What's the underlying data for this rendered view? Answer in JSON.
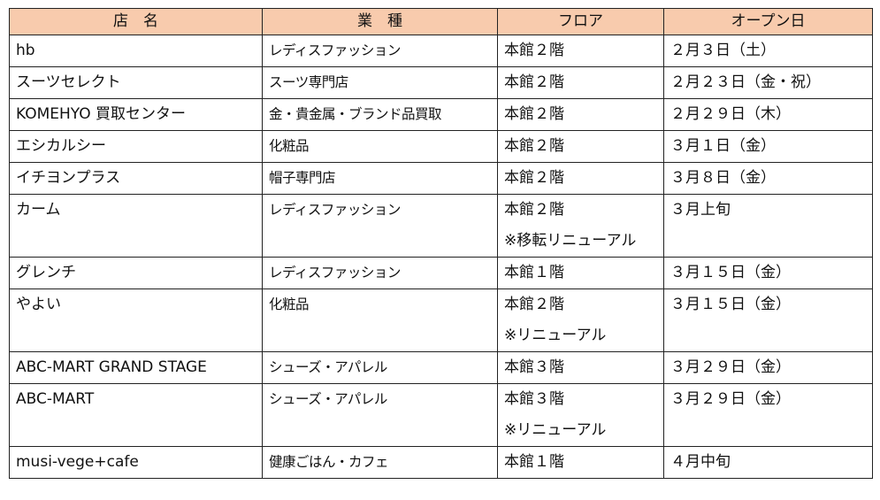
{
  "headers": {
    "name": "店　名",
    "type": "業　種",
    "floor": "フロア",
    "open": "オープン日"
  },
  "rows": [
    {
      "name": "hb",
      "type": "レディスファッション",
      "floor": "本館２階",
      "floor_note": "",
      "open": "２月３日（土）"
    },
    {
      "name": "スーツセレクト",
      "type": "スーツ専門店",
      "floor": "本館２階",
      "floor_note": "",
      "open": "２月２３日（金・祝）"
    },
    {
      "name": "KOMEHYO 買取センター",
      "type": "金・貴金属・ブランド品買取",
      "floor": "本館２階",
      "floor_note": "",
      "open": "２月２９日（木）"
    },
    {
      "name": "エシカルシー",
      "type": "化粧品",
      "floor": "本館２階",
      "floor_note": "",
      "open": "３月１日（金）"
    },
    {
      "name": "イチヨンプラス",
      "type": "帽子専門店",
      "floor": "本館２階",
      "floor_note": "",
      "open": "３月８日（金）"
    },
    {
      "name": "カーム",
      "type": "レディスファッション",
      "floor": "本館２階",
      "floor_note": "※移転リニューアル",
      "open": "３月上旬"
    },
    {
      "name": "グレンチ",
      "type": "レディスファッション",
      "floor": "本館１階",
      "floor_note": "",
      "open": "３月１５日（金）"
    },
    {
      "name": "やよい",
      "type": "化粧品",
      "floor": "本館２階",
      "floor_note": "※リニューアル",
      "open": "３月１５日（金）"
    },
    {
      "name": "ABC-MART GRAND STAGE",
      "type": "シューズ・アパレル",
      "floor": "本館３階",
      "floor_note": "",
      "open": "３月２９日（金）"
    },
    {
      "name": "ABC-MART",
      "type": "シューズ・アパレル",
      "floor": "本館３階",
      "floor_note": "※リニューアル",
      "open": "３月２９日（金）"
    },
    {
      "name": "musi-vege+cafe",
      "type": "健康ごはん・カフェ",
      "floor": "本館１階",
      "floor_note": "",
      "open": "４月中旬"
    }
  ],
  "colors": {
    "header_bg": "#f8cbad",
    "border": "#222222"
  }
}
